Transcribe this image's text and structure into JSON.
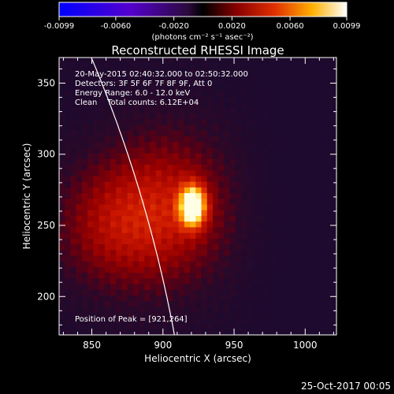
{
  "colorbar": {
    "ticks": [
      "-0.0099",
      "-0.0060",
      "-0.0020",
      "0.0020",
      "0.0060",
      "0.0099"
    ],
    "units": "(photons cm⁻² s⁻¹ asec⁻²)",
    "range": [
      -0.0099,
      0.0099
    ]
  },
  "chart_data": {
    "type": "heatmap",
    "title": "Reconstructed RHESSI Image",
    "xlabel": "Heliocentric X (arcsec)",
    "ylabel": "Heliocentric Y (arcsec)",
    "xlim": [
      827,
      1022
    ],
    "ylim": [
      173,
      368
    ],
    "xticks": [
      850,
      900,
      950,
      1000
    ],
    "yticks": [
      200,
      250,
      300,
      350
    ],
    "annotations": [
      "20-May-2015 02:40:32.000 to 02:50:32.000",
      "Detectors: 3F 5F 6F 7F 8F 9F, Att 0",
      "Energy Range: 6.0 - 12.0 keV",
      "Clean    Total counts: 6.12E+04"
    ],
    "peak_label": "Position of Peak = [921,264]",
    "peak": [
      921,
      264
    ],
    "peak_value": 0.0099,
    "grid": false
  },
  "footer": {
    "date": "25-Oct-2017 00:05"
  },
  "colors": {
    "background": "#000000",
    "text": "#ffffff",
    "limb": "#ffffff"
  }
}
